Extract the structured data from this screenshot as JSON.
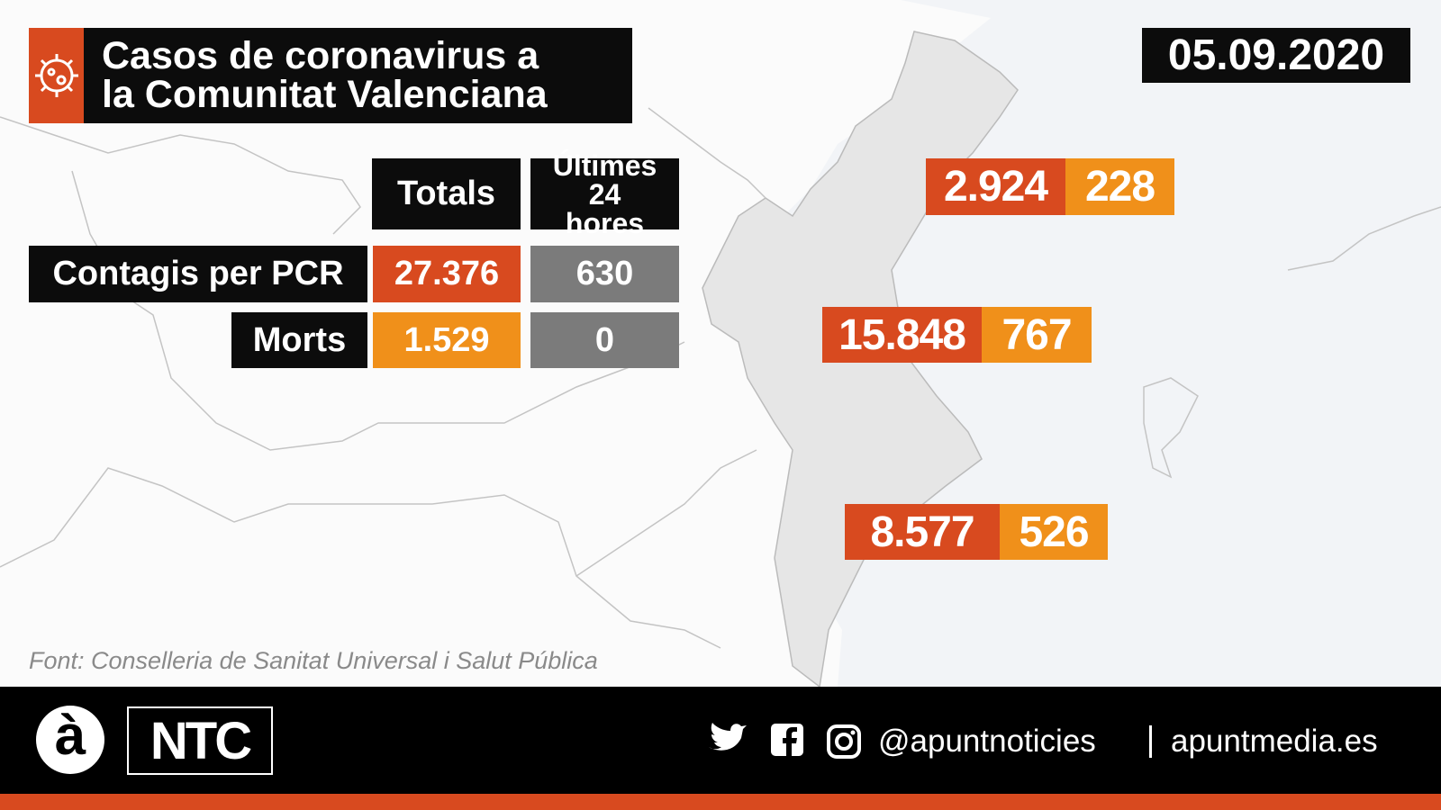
{
  "header": {
    "title_lines": [
      "Casos de coronavirus a",
      "la Comunitat Valenciana"
    ],
    "date": "05.09.2020"
  },
  "table": {
    "headers": [
      "Totals",
      "Últimes 24 hores"
    ],
    "rows": [
      [
        "Contagis per PCR",
        "27.376",
        "630"
      ],
      [
        "Morts",
        "1.529",
        "0"
      ]
    ]
  },
  "provinces": [
    [
      "2.924",
      "228"
    ],
    [
      "15.848",
      "767"
    ],
    [
      "8.577",
      "526"
    ]
  ],
  "source": "Font: Conselleria de Sanitat Universal i Salut Pública",
  "footer": {
    "logo": "à",
    "brand": "NTC",
    "handle": "@apuntnoticies",
    "site": "apuntmedia.es"
  }
}
